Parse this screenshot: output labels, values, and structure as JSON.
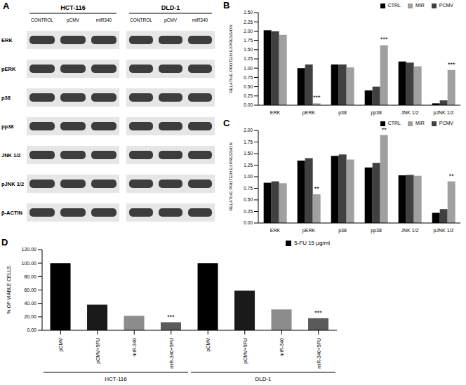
{
  "blot": {
    "title": "A",
    "cell_lines": [
      {
        "name": "HCT-116",
        "lanes": [
          "CONTROL",
          "pCMV",
          "miR340"
        ]
      },
      {
        "name": "DLD-1",
        "lanes": [
          "CONTROL",
          "pCMV",
          "miR340"
        ]
      }
    ],
    "proteins": [
      "ERK",
      "pERK",
      "p38",
      "pp38",
      "JNK 1/2",
      "pJNK 1/2",
      "β-ACTIN"
    ]
  },
  "chart_data": [
    {
      "type": "bar",
      "title": "B",
      "y_label": "RELATIVE PROTEIN EXPRESSION",
      "categories": [
        "ERK",
        "pERK",
        "p38",
        "pp38",
        "JNK 1/2",
        "pJNK 1/2"
      ],
      "series": [
        {
          "name": "CTRL",
          "color": "#000000",
          "values": [
            2.02,
            1.0,
            1.1,
            0.4,
            1.18,
            0.05
          ],
          "annotations": [
            null,
            null,
            null,
            null,
            null,
            null
          ]
        },
        {
          "name": "PCMV",
          "color": "#404040",
          "values": [
            2.0,
            1.1,
            1.1,
            0.5,
            1.15,
            0.13
          ],
          "annotations": [
            null,
            null,
            null,
            null,
            null,
            null
          ]
        },
        {
          "name": "MIR",
          "color": "#a0a0a0",
          "values": [
            1.9,
            0.05,
            1.02,
            1.62,
            1.05,
            0.95
          ],
          "annotations": [
            null,
            "***",
            null,
            "***",
            null,
            "***"
          ]
        }
      ],
      "ylim": [
        0,
        2.5
      ],
      "yticks": [
        {
          "value": 0,
          "label": "0.00"
        },
        {
          "value": 0.25,
          "label": "0.25"
        },
        {
          "value": 0.5,
          "label": "0.50"
        },
        {
          "value": 0.75,
          "label": "0.75"
        },
        {
          "value": 1,
          "label": "1.00"
        },
        {
          "value": 1.25,
          "label": "1.25"
        },
        {
          "value": 1.5,
          "label": "1.50"
        },
        {
          "value": 1.75,
          "label": "1.75"
        },
        {
          "value": 2,
          "label": "2.00"
        },
        {
          "value": 2.25,
          "label": "2.25"
        },
        {
          "value": 2.5,
          "label": "2.50"
        }
      ],
      "legend": "top right"
    },
    {
      "type": "bar",
      "title": "C",
      "y_label": "RELATIVE PROTEIN EXPRESSION",
      "categories": [
        "ERK",
        "pERK",
        "p38",
        "pp38",
        "JNK 1/2",
        "pJNK 1/2"
      ],
      "series": [
        {
          "name": "CTRL",
          "color": "#000000",
          "values": [
            0.87,
            1.35,
            1.45,
            1.2,
            1.03,
            0.22
          ],
          "annotations": [
            null,
            null,
            null,
            null,
            null,
            null
          ]
        },
        {
          "name": "PCMV",
          "color": "#404040",
          "values": [
            0.9,
            1.4,
            1.48,
            1.3,
            1.04,
            0.3
          ],
          "annotations": [
            null,
            null,
            null,
            null,
            null,
            null
          ]
        },
        {
          "name": "MIR",
          "color": "#a0a0a0",
          "values": [
            0.86,
            0.62,
            1.37,
            1.9,
            1.02,
            0.9
          ],
          "annotations": [
            null,
            "**",
            null,
            "**",
            null,
            "**"
          ]
        }
      ],
      "ylim": [
        0,
        2
      ],
      "yticks": [
        {
          "value": 0,
          "label": "0.00"
        },
        {
          "value": 0.25,
          "label": "0.25"
        },
        {
          "value": 0.5,
          "label": "0.50"
        },
        {
          "value": 0.75,
          "label": "0.75"
        },
        {
          "value": 1,
          "label": "1.00"
        },
        {
          "value": 1.25,
          "label": "1.25"
        },
        {
          "value": 1.5,
          "label": "1.50"
        },
        {
          "value": 1.75,
          "label": "1.75"
        },
        {
          "value": 2,
          "label": "2.00"
        }
      ],
      "legend": "top right"
    },
    {
      "type": "bar",
      "title": "D",
      "y_label": "% OF VIABLE CELLS",
      "categories": [
        "pCMV",
        "pCMV+5FU",
        "miR-340",
        "miR-340+5FU",
        "pCMV",
        "pCMV+5FU",
        "miR-340",
        "miR-340+5FU"
      ],
      "group": [
        "HCT-116",
        "HCT-116",
        "HCT-116",
        "HCT-116",
        "DLD-1",
        "DLD-1",
        "DLD-1",
        "DLD-1"
      ],
      "series": [
        {
          "name": "5-FU 15 µg/ml",
          "colors": [
            "#000000",
            "#1a1a1a",
            "#8c8c8c",
            "#5a5a5a",
            "#000000",
            "#1a1a1a",
            "#8c8c8c",
            "#5a5a5a"
          ],
          "values": [
            100,
            38,
            21.5,
            12,
            100,
            59,
            31,
            18
          ],
          "annotations": [
            null,
            null,
            null,
            "***",
            null,
            null,
            null,
            "***"
          ]
        }
      ],
      "ylim": [
        0,
        120
      ],
      "yticks": [
        {
          "value": 0,
          "label": "0.00"
        },
        {
          "value": 20,
          "label": "20.00"
        },
        {
          "value": 40,
          "label": "40.00"
        },
        {
          "value": 60,
          "label": "60.00"
        },
        {
          "value": 80,
          "label": "80.00"
        },
        {
          "value": 100,
          "label": "100.00"
        },
        {
          "value": 120,
          "label": "120.00"
        }
      ],
      "legend": "top right"
    }
  ]
}
